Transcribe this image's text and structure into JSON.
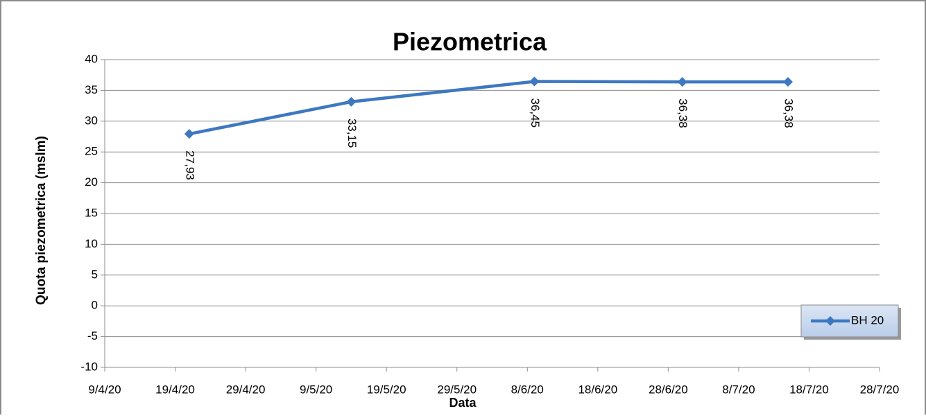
{
  "chart_data": {
    "type": "line",
    "title": "Piezometrica",
    "x_label": "Data",
    "y_label": "Quota piezometrica (mslm)",
    "x": [
      "2020-04-21",
      "2020-05-14",
      "2020-06-09",
      "2020-06-30",
      "2020-07-15"
    ],
    "series": [
      {
        "name": "BH 20",
        "color": "#3d78c0",
        "values": [
          27.93,
          33.15,
          36.45,
          36.38,
          36.38
        ],
        "value_labels": [
          "27,93",
          "33,15",
          "36,45",
          "36,38",
          "36,38"
        ]
      }
    ],
    "xlim": [
      "2020-04-09",
      "2020-07-28"
    ],
    "xticks": [
      {
        "value": "2020-04-09",
        "label": "9/4/20"
      },
      {
        "value": "2020-04-19",
        "label": "19/4/20"
      },
      {
        "value": "2020-04-29",
        "label": "29/4/20"
      },
      {
        "value": "2020-05-09",
        "label": "9/5/20"
      },
      {
        "value": "2020-05-19",
        "label": "19/5/20"
      },
      {
        "value": "2020-05-29",
        "label": "29/5/20"
      },
      {
        "value": "2020-06-08",
        "label": "8/6/20"
      },
      {
        "value": "2020-06-18",
        "label": "18/6/20"
      },
      {
        "value": "2020-06-28",
        "label": "28/6/20"
      },
      {
        "value": "2020-07-08",
        "label": "8/7/20"
      },
      {
        "value": "2020-07-18",
        "label": "18/7/20"
      },
      {
        "value": "2020-07-28",
        "label": "28/7/20"
      }
    ],
    "ylim": [
      -10,
      40
    ],
    "yticks": [
      -10,
      -5,
      0,
      5,
      10,
      15,
      20,
      25,
      30,
      35,
      40
    ],
    "grid": true,
    "legend": "right"
  }
}
